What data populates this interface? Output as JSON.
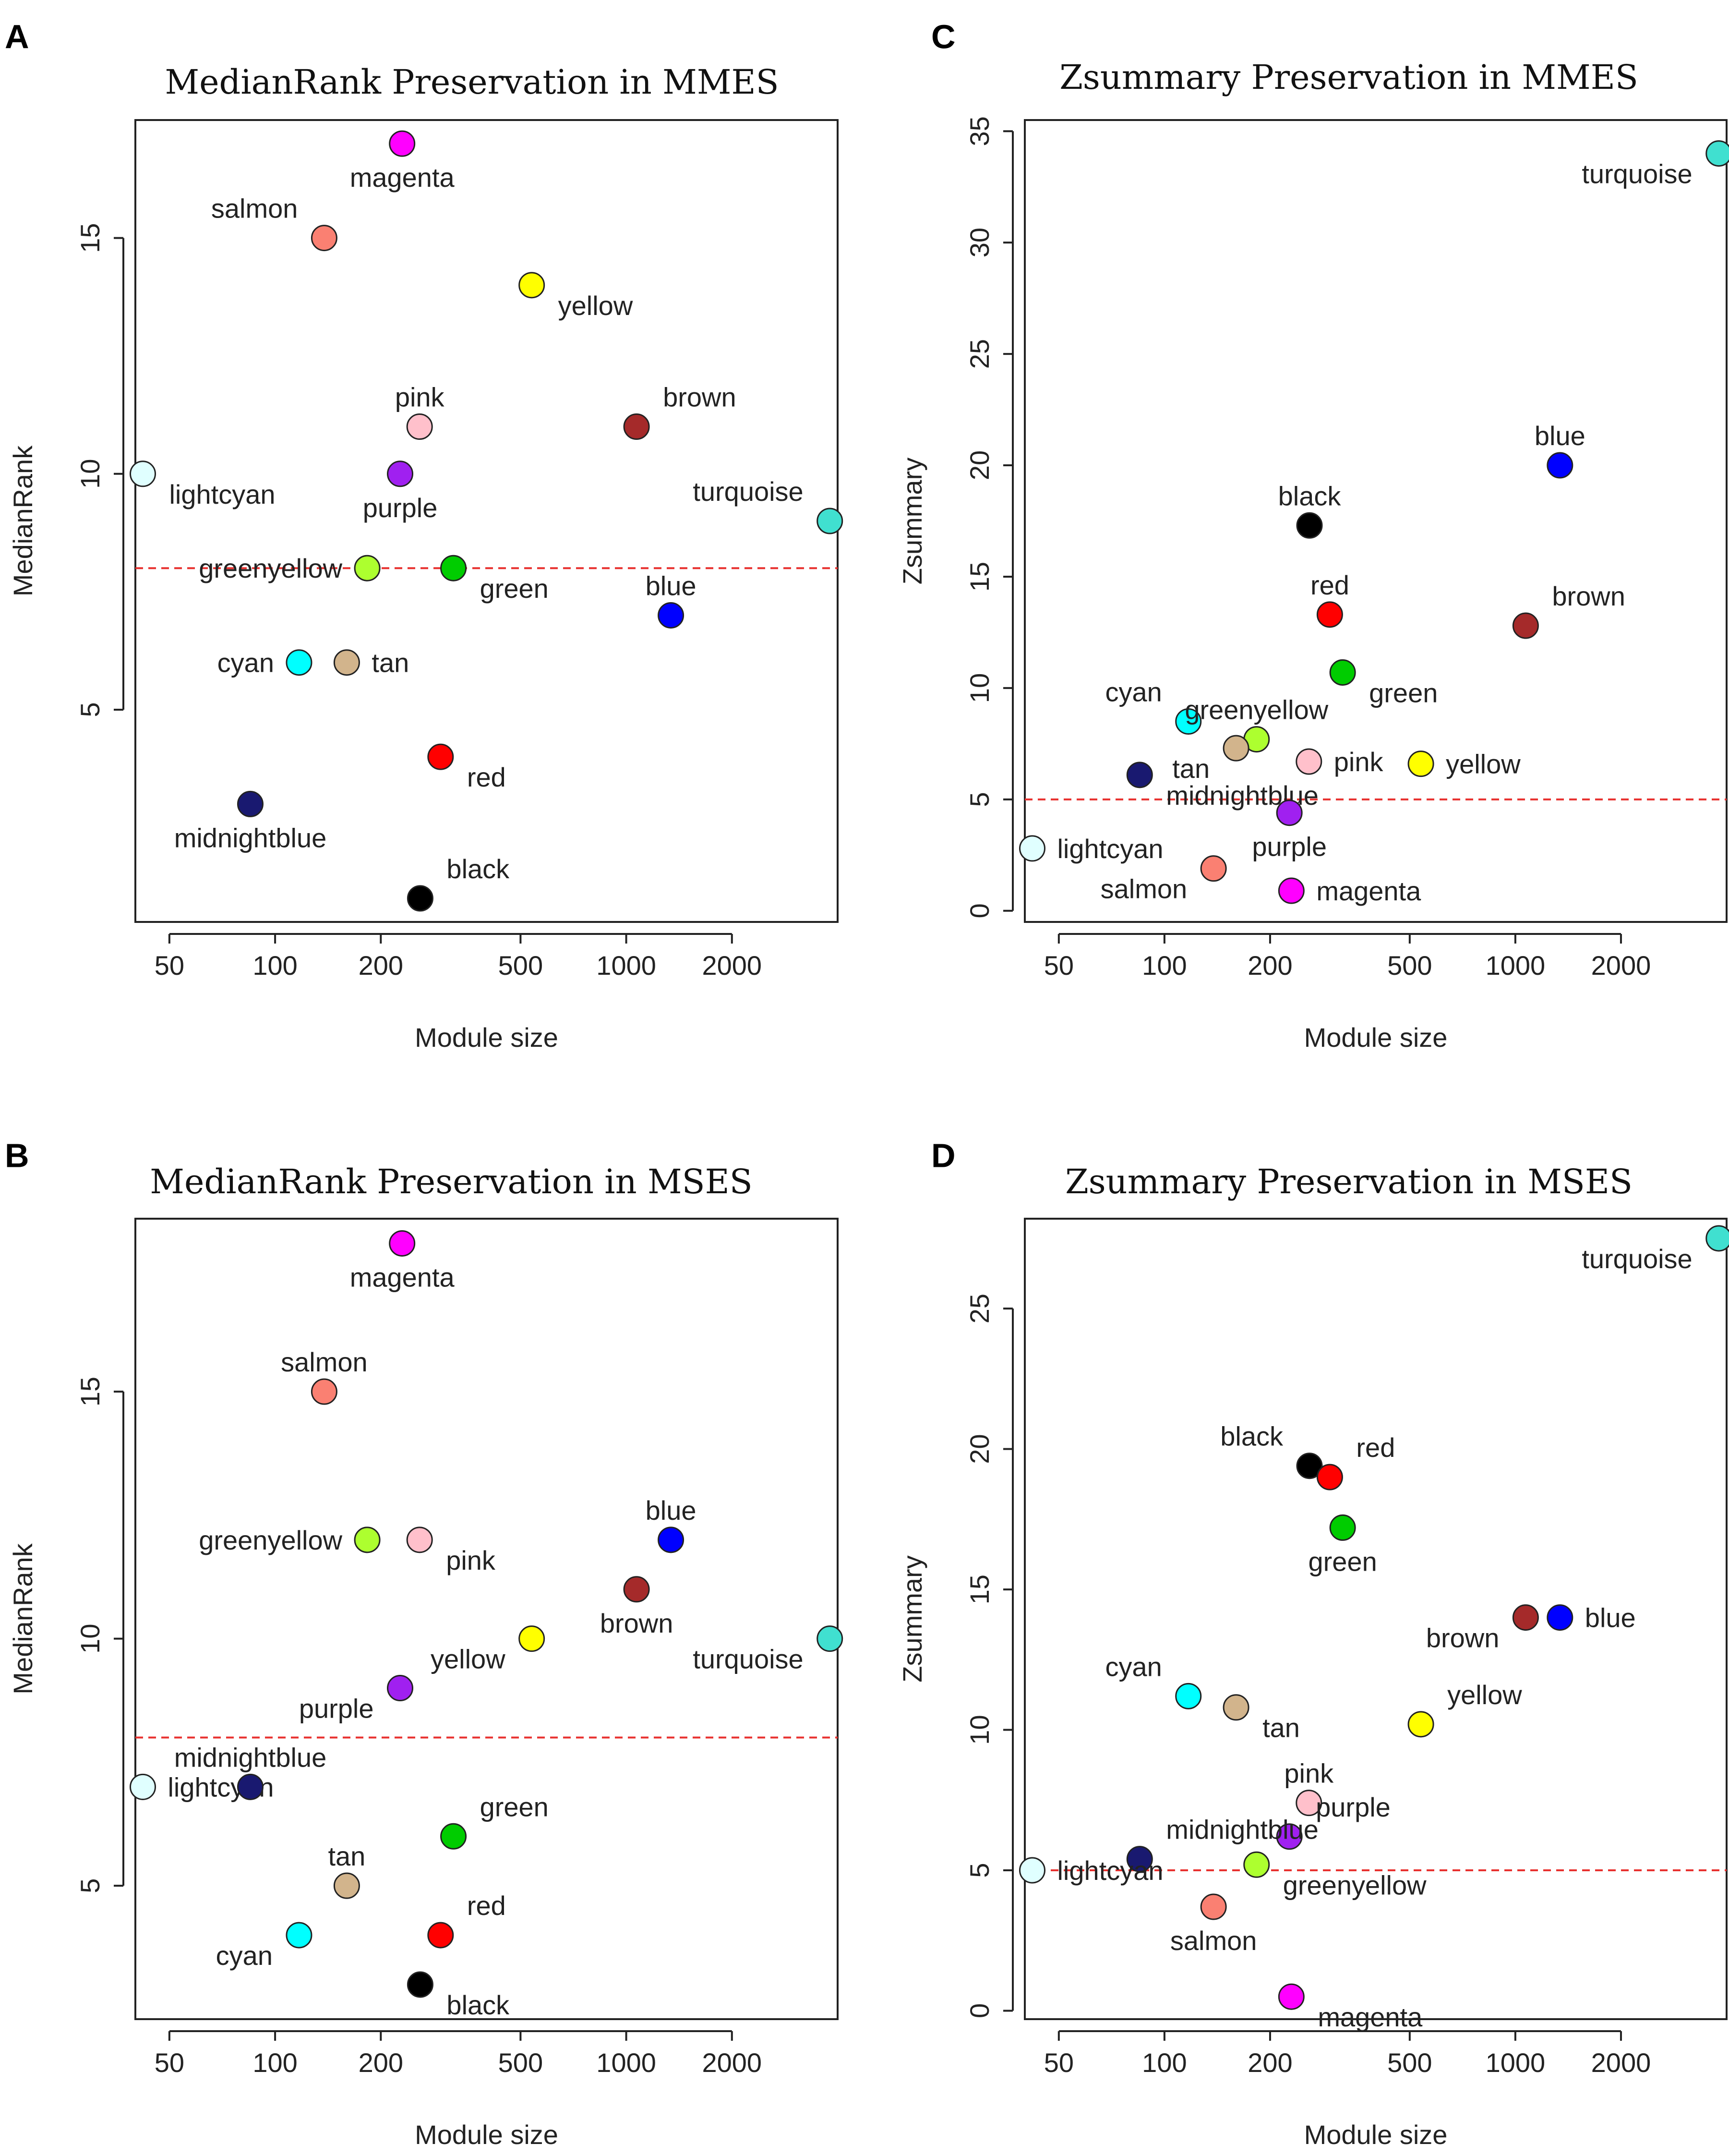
{
  "chart_data": [
    {
      "panel_label": "A",
      "type": "scatter",
      "title": "MedianRank Preservation in MMES",
      "xlabel": "Module size",
      "ylabel": "MedianRank",
      "xscale": "log",
      "xlim": [
        40,
        4000
      ],
      "ylim": [
        0.5,
        17.5
      ],
      "xticks": [
        50,
        100,
        200,
        500,
        1000,
        2000
      ],
      "yticks": [
        5,
        10,
        15
      ],
      "threshold": 8,
      "points": [
        {
          "name": "magenta",
          "x": 230,
          "y": 17,
          "color": "#ff00ff",
          "label_pos": "below"
        },
        {
          "name": "salmon",
          "x": 138,
          "y": 15,
          "color": "#fa8072",
          "label_pos": "upper-left"
        },
        {
          "name": "yellow",
          "x": 538,
          "y": 14,
          "color": "#ffff00",
          "label_pos": "lower-right"
        },
        {
          "name": "pink",
          "x": 258,
          "y": 11,
          "color": "#ffc0cb",
          "label_pos": "above"
        },
        {
          "name": "brown",
          "x": 1070,
          "y": 11,
          "color": "#a52a2a",
          "label_pos": "upper-right"
        },
        {
          "name": "lightcyan",
          "x": 42,
          "y": 10,
          "color": "#e0ffff",
          "label_pos": "lower-right"
        },
        {
          "name": "purple",
          "x": 227,
          "y": 10,
          "color": "#a020f0",
          "label_pos": "below"
        },
        {
          "name": "turquoise",
          "x": 3800,
          "y": 9,
          "color": "#40e0d0",
          "label_pos": "upper-left"
        },
        {
          "name": "greenyellow",
          "x": 183,
          "y": 8,
          "color": "#adff2f",
          "label_pos": "left"
        },
        {
          "name": "green",
          "x": 322,
          "y": 8,
          "color": "#00cc00",
          "label_pos": "lower-right"
        },
        {
          "name": "blue",
          "x": 1340,
          "y": 7,
          "color": "#0000ff",
          "label_pos": "above"
        },
        {
          "name": "cyan",
          "x": 117,
          "y": 6,
          "color": "#00ffff",
          "label_pos": "left"
        },
        {
          "name": "tan",
          "x": 160,
          "y": 6,
          "color": "#d2b48c",
          "label_pos": "right"
        },
        {
          "name": "red",
          "x": 296,
          "y": 4,
          "color": "#ff0000",
          "label_pos": "lower-right"
        },
        {
          "name": "midnightblue",
          "x": 85,
          "y": 3,
          "color": "#191970",
          "label_pos": "below"
        },
        {
          "name": "black",
          "x": 259,
          "y": 1,
          "color": "#000000",
          "label_pos": "upper-right"
        }
      ]
    },
    {
      "panel_label": "B",
      "type": "scatter",
      "title": "MedianRank Preservation in MSES",
      "xlabel": "Module size",
      "ylabel": "MedianRank",
      "xscale": "log",
      "xlim": [
        40,
        4000
      ],
      "ylim": [
        2.3,
        18.5
      ],
      "xticks": [
        50,
        100,
        200,
        500,
        1000,
        2000
      ],
      "yticks": [
        5,
        10,
        15
      ],
      "threshold": 8,
      "points": [
        {
          "name": "magenta",
          "x": 230,
          "y": 18,
          "color": "#ff00ff",
          "label_pos": "below"
        },
        {
          "name": "salmon",
          "x": 138,
          "y": 15,
          "color": "#fa8072",
          "label_pos": "above"
        },
        {
          "name": "greenyellow",
          "x": 183,
          "y": 12,
          "color": "#adff2f",
          "label_pos": "left"
        },
        {
          "name": "pink",
          "x": 258,
          "y": 12,
          "color": "#ffc0cb",
          "label_pos": "lower-right"
        },
        {
          "name": "blue",
          "x": 1340,
          "y": 12,
          "color": "#0000ff",
          "label_pos": "above"
        },
        {
          "name": "brown",
          "x": 1070,
          "y": 11,
          "color": "#a52a2a",
          "label_pos": "below"
        },
        {
          "name": "yellow",
          "x": 538,
          "y": 10,
          "color": "#ffff00",
          "label_pos": "lower-left"
        },
        {
          "name": "turquoise",
          "x": 3800,
          "y": 10,
          "color": "#40e0d0",
          "label_pos": "lower-left"
        },
        {
          "name": "purple",
          "x": 227,
          "y": 9,
          "color": "#a020f0",
          "label_pos": "lower-left"
        },
        {
          "name": "lightcyan",
          "x": 42,
          "y": 7,
          "color": "#e0ffff",
          "label_pos": "right"
        },
        {
          "name": "midnightblue",
          "x": 85,
          "y": 7,
          "color": "#191970",
          "label_pos": "above"
        },
        {
          "name": "green",
          "x": 322,
          "y": 6,
          "color": "#00cc00",
          "label_pos": "upper-right"
        },
        {
          "name": "tan",
          "x": 160,
          "y": 5,
          "color": "#d2b48c",
          "label_pos": "above"
        },
        {
          "name": "cyan",
          "x": 117,
          "y": 4,
          "color": "#00ffff",
          "label_pos": "lower-left"
        },
        {
          "name": "red",
          "x": 296,
          "y": 4,
          "color": "#ff0000",
          "label_pos": "upper-right"
        },
        {
          "name": "black",
          "x": 259,
          "y": 3,
          "color": "#000000",
          "label_pos": "lower-right"
        }
      ]
    },
    {
      "panel_label": "C",
      "type": "scatter",
      "title": "Zsummary Preservation in MMES",
      "xlabel": "Module size",
      "ylabel": "Zsummary",
      "xscale": "log",
      "xlim": [
        40,
        4000
      ],
      "ylim": [
        -0.5,
        35.5
      ],
      "xticks": [
        50,
        100,
        200,
        500,
        1000,
        2000
      ],
      "yticks": [
        0,
        5,
        10,
        15,
        20,
        25,
        30,
        35
      ],
      "threshold": 5,
      "points": [
        {
          "name": "turquoise",
          "x": 3800,
          "y": 34,
          "color": "#40e0d0",
          "label_pos": "lower-left"
        },
        {
          "name": "blue",
          "x": 1340,
          "y": 20,
          "color": "#0000ff",
          "label_pos": "above"
        },
        {
          "name": "black",
          "x": 259,
          "y": 17.3,
          "color": "#000000",
          "label_pos": "above"
        },
        {
          "name": "red",
          "x": 296,
          "y": 13.3,
          "color": "#ff0000",
          "label_pos": "above"
        },
        {
          "name": "brown",
          "x": 1070,
          "y": 12.8,
          "color": "#a52a2a",
          "label_pos": "upper-right"
        },
        {
          "name": "green",
          "x": 322,
          "y": 10.7,
          "color": "#00cc00",
          "label_pos": "lower-right"
        },
        {
          "name": "cyan",
          "x": 117,
          "y": 8.5,
          "color": "#00ffff",
          "label_pos": "upper-left"
        },
        {
          "name": "greenyellow",
          "x": 183,
          "y": 7.7,
          "color": "#adff2f",
          "label_pos": "above"
        },
        {
          "name": "tan",
          "x": 160,
          "y": 7.3,
          "color": "#d2b48c",
          "label_pos": "lower-left"
        },
        {
          "name": "pink",
          "x": 258,
          "y": 6.7,
          "color": "#ffc0cb",
          "label_pos": "right"
        },
        {
          "name": "yellow",
          "x": 538,
          "y": 6.6,
          "color": "#ffff00",
          "label_pos": "right"
        },
        {
          "name": "midnightblue",
          "x": 85,
          "y": 6.1,
          "color": "#191970",
          "label_pos": "lower-right"
        },
        {
          "name": "purple",
          "x": 227,
          "y": 4.4,
          "color": "#a020f0",
          "label_pos": "below"
        },
        {
          "name": "lightcyan",
          "x": 42,
          "y": 2.8,
          "color": "#e0ffff",
          "label_pos": "right"
        },
        {
          "name": "salmon",
          "x": 138,
          "y": 1.9,
          "color": "#fa8072",
          "label_pos": "lower-left"
        },
        {
          "name": "magenta",
          "x": 230,
          "y": 0.9,
          "color": "#ff00ff",
          "label_pos": "right"
        }
      ]
    },
    {
      "panel_label": "D",
      "type": "scatter",
      "title": "Zsummary Preservation in MSES",
      "xlabel": "Module size",
      "ylabel": "Zsummary",
      "xscale": "log",
      "xlim": [
        40,
        4000
      ],
      "ylim": [
        -0.3,
        28.2
      ],
      "xticks": [
        50,
        100,
        200,
        500,
        1000,
        2000
      ],
      "yticks": [
        0,
        5,
        10,
        15,
        20,
        25
      ],
      "threshold": 5,
      "points": [
        {
          "name": "turquoise",
          "x": 3800,
          "y": 27.5,
          "color": "#40e0d0",
          "label_pos": "lower-left"
        },
        {
          "name": "black",
          "x": 259,
          "y": 19.4,
          "color": "#000000",
          "label_pos": "upper-left"
        },
        {
          "name": "red",
          "x": 296,
          "y": 19,
          "color": "#ff0000",
          "label_pos": "upper-right"
        },
        {
          "name": "green",
          "x": 322,
          "y": 17.2,
          "color": "#00cc00",
          "label_pos": "below"
        },
        {
          "name": "brown",
          "x": 1070,
          "y": 14,
          "color": "#a52a2a",
          "label_pos": "lower-left"
        },
        {
          "name": "blue",
          "x": 1340,
          "y": 14,
          "color": "#0000ff",
          "label_pos": "right"
        },
        {
          "name": "cyan",
          "x": 117,
          "y": 11.2,
          "color": "#00ffff",
          "label_pos": "upper-left"
        },
        {
          "name": "tan",
          "x": 160,
          "y": 10.8,
          "color": "#d2b48c",
          "label_pos": "lower-right"
        },
        {
          "name": "yellow",
          "x": 538,
          "y": 10.2,
          "color": "#ffff00",
          "label_pos": "upper-right"
        },
        {
          "name": "pink",
          "x": 258,
          "y": 7.4,
          "color": "#ffc0cb",
          "label_pos": "above"
        },
        {
          "name": "purple",
          "x": 227,
          "y": 6.2,
          "color": "#a020f0",
          "label_pos": "upper-right"
        },
        {
          "name": "midnightblue",
          "x": 85,
          "y": 5.4,
          "color": "#191970",
          "label_pos": "upper-right"
        },
        {
          "name": "greenyellow",
          "x": 183,
          "y": 5.2,
          "color": "#adff2f",
          "label_pos": "lower-right"
        },
        {
          "name": "lightcyan",
          "x": 42,
          "y": 5,
          "color": "#e0ffff",
          "label_pos": "right"
        },
        {
          "name": "salmon",
          "x": 138,
          "y": 3.7,
          "color": "#fa8072",
          "label_pos": "below"
        },
        {
          "name": "magenta",
          "x": 230,
          "y": 0.5,
          "color": "#ff00ff",
          "label_pos": "lower-right"
        }
      ]
    }
  ],
  "colors": {
    "threshold_line": "#e8312f",
    "axis": "#222222",
    "point_outline": "#222222"
  }
}
